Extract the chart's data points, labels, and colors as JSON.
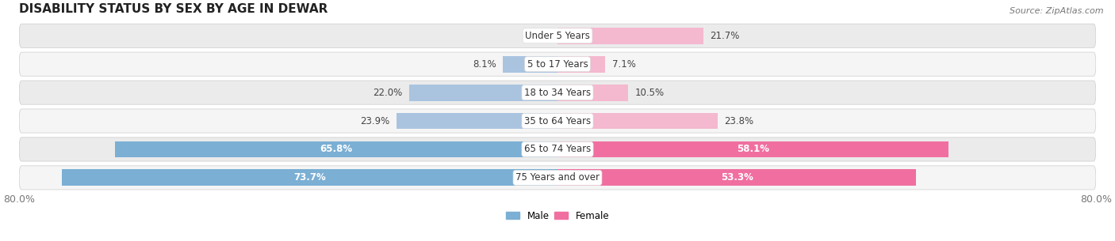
{
  "title": "DISABILITY STATUS BY SEX BY AGE IN DEWAR",
  "source": "Source: ZipAtlas.com",
  "categories": [
    "Under 5 Years",
    "5 to 17 Years",
    "18 to 34 Years",
    "35 to 64 Years",
    "65 to 74 Years",
    "75 Years and over"
  ],
  "male_values": [
    0.0,
    8.1,
    22.0,
    23.9,
    65.8,
    73.7
  ],
  "female_values": [
    21.7,
    7.1,
    10.5,
    23.8,
    58.1,
    53.3
  ],
  "male_color_small": "#aac4e0",
  "male_color_large": "#7bafd4",
  "female_color_small": "#f4b8cf",
  "female_color_large": "#f06fa0",
  "row_bg_light": "#f5f5f5",
  "row_bg_dark": "#ebebeb",
  "xlim_left": -80.0,
  "xlim_right": 80.0,
  "label_inside_threshold": 28.0,
  "bar_height": 0.58,
  "title_fontsize": 11,
  "tick_fontsize": 9,
  "label_fontsize": 8.5,
  "category_fontsize": 8.5
}
